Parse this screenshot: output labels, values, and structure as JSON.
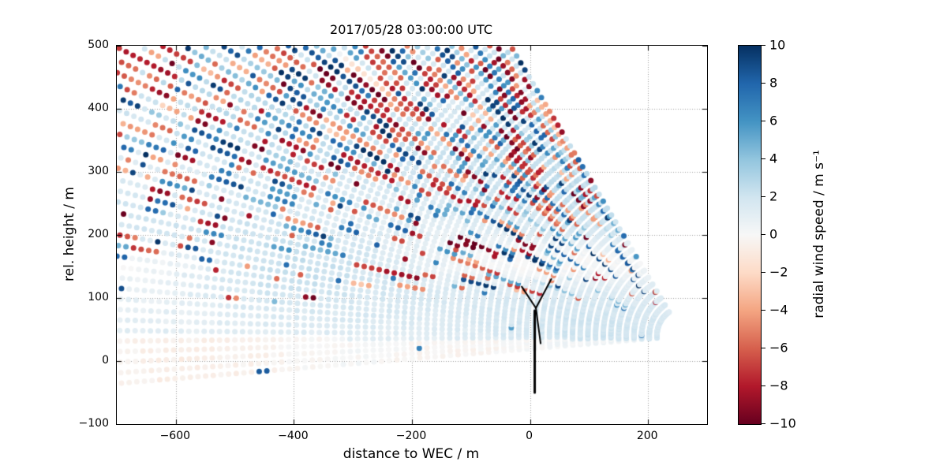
{
  "chart_data": {
    "type": "scatter",
    "title": "2017/05/28 03:00:00 UTC",
    "xlabel": "distance to WEC / m",
    "ylabel": "rel. height / m",
    "colorbar_label": "radial wind speed / m s⁻¹",
    "xlim": [
      -700,
      300
    ],
    "ylim": [
      -100,
      500
    ],
    "xticks": [
      -600,
      -400,
      -200,
      0,
      200
    ],
    "yticks": [
      -100,
      0,
      100,
      200,
      300,
      400,
      500
    ],
    "grid": true,
    "grid_style": "dotted",
    "colormap": "RdBu",
    "clim": [
      -10,
      10
    ],
    "colorbar_ticks": [
      10,
      8,
      6,
      4,
      2,
      0,
      -2,
      -4,
      -6,
      -8,
      -10
    ],
    "colormap_anchors": [
      "#67001f",
      "#b2182b",
      "#d6604d",
      "#f4a582",
      "#fddbc7",
      "#f7f7f7",
      "#d1e5f0",
      "#92c5de",
      "#4393c3",
      "#2166ac",
      "#053061"
    ],
    "marker_size_px": 7,
    "lidar_scan": {
      "description": "RHI lidar fan scan of radial wind speed; beams converge at the lidar position right of the WEC, pointing in the negative-x direction",
      "origin": [
        260,
        40
      ],
      "elevation_deg": {
        "min": -4.5,
        "max": 57,
        "step": 1.0
      },
      "range_m": {
        "min": 45,
        "max": 1080,
        "step": 13
      },
      "seed": 20170528,
      "background_flow_ms": "≈ +1 to +3 (light blue), slightly negative (pale red) below ~35 m and in a band near 150–190 m",
      "noise": "random saturated values ±(3.5–10) m/s, probability increasing above ~180 m rel. height"
    },
    "turbine": {
      "tower": [
        [
          8,
          -50
        ],
        [
          8,
          80
        ]
      ],
      "hub": [
        10,
        84
      ],
      "blades": [
        [
          [
            10,
            84
          ],
          [
            36,
            130
          ]
        ],
        [
          [
            10,
            84
          ],
          [
            -14,
            118
          ]
        ],
        [
          [
            10,
            84
          ],
          [
            18,
            28
          ]
        ]
      ]
    }
  }
}
